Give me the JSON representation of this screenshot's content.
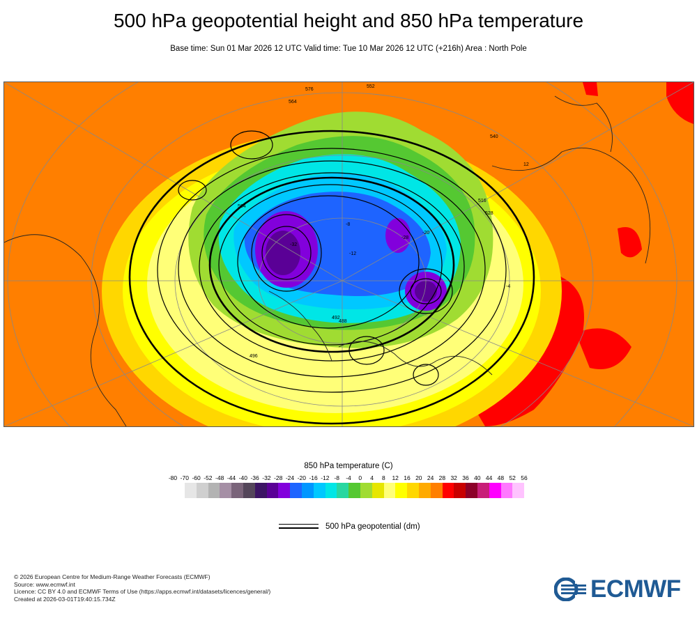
{
  "header": {
    "title": "500 hPa geopotential height and 850 hPa temperature",
    "subtitle": "Base time: Sun 01 Mar 2026 12 UTC Valid time: Tue 10 Mar 2026 12 UTC (+216h) Area : North Pole"
  },
  "map": {
    "contour_labels": [
      "576",
      "564",
      "552",
      "540",
      "528",
      "516",
      "504",
      "496",
      "492",
      "488",
      "12",
      "-4",
      "-8",
      "-12",
      "-20",
      "-28",
      "-32"
    ]
  },
  "legend": {
    "title": "850 hPa temperature (C)",
    "ticks": [
      "-80",
      "-70",
      "-60",
      "-52",
      "-48",
      "-44",
      "-40",
      "-36",
      "-32",
      "-28",
      "-24",
      "-20",
      "-16",
      "-12",
      "-8",
      "-4",
      "0",
      "4",
      "8",
      "12",
      "16",
      "20",
      "24",
      "28",
      "32",
      "36",
      "40",
      "44",
      "48",
      "52",
      "56"
    ],
    "colors": [
      "#e6e6e6",
      "#cfcfcf",
      "#b3b3b3",
      "#a58fa5",
      "#7a647a",
      "#54465a",
      "#3c1464",
      "#5a0096",
      "#8200dc",
      "#1e64ff",
      "#0096ff",
      "#00c8ff",
      "#00e6e6",
      "#28d7a0",
      "#55c832",
      "#a0dc32",
      "#e6e600",
      "#ffff78",
      "#ffff00",
      "#ffd700",
      "#ffaa00",
      "#ff7f00",
      "#ff0000",
      "#c80000",
      "#8c0028",
      "#c81e78",
      "#ff00ff",
      "#ff78ff",
      "#ffc3ff",
      "#e6c8e6",
      "#e6e6e6"
    ],
    "geopotential_label": "500 hPa geopotential (dm)"
  },
  "footer": {
    "credit_lines": [
      "© 2026 European Centre for Medium-Range Weather Forecasts (ECMWF)",
      "Source: www.ecmwf.int",
      "Licence: CC BY 4.0 and ECMWF Terms of Use (https://apps.ecmwf.int/datasets/licences/general/)",
      "Created at 2026-03-01T19:40:15.734Z"
    ],
    "logo_text": "ECMWF"
  }
}
